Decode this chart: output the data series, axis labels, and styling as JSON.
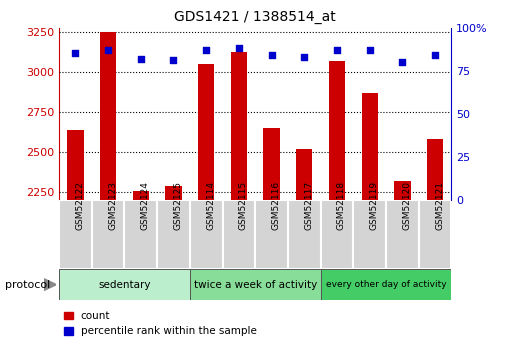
{
  "title": "GDS1421 / 1388514_at",
  "samples": [
    "GSM52122",
    "GSM52123",
    "GSM52124",
    "GSM52125",
    "GSM52114",
    "GSM52115",
    "GSM52116",
    "GSM52117",
    "GSM52118",
    "GSM52119",
    "GSM52120",
    "GSM52121"
  ],
  "counts": [
    2640,
    3250,
    2260,
    2290,
    3050,
    3130,
    2650,
    2520,
    3070,
    2870,
    2320,
    2580
  ],
  "percentile_ranks": [
    85,
    87,
    82,
    81,
    87,
    88,
    84,
    83,
    87,
    87,
    80,
    84
  ],
  "groups": [
    {
      "label": "sedentary",
      "start": 0,
      "end": 4,
      "color": "#bbeecc"
    },
    {
      "label": "twice a week of activity",
      "start": 4,
      "end": 8,
      "color": "#88dd99"
    },
    {
      "label": "every other day of activity",
      "start": 8,
      "end": 12,
      "color": "#44cc66"
    }
  ],
  "ylim_left": [
    2200,
    3280
  ],
  "ylim_right": [
    0,
    100
  ],
  "left_ticks": [
    2250,
    2500,
    2750,
    3000,
    3250
  ],
  "right_ticks": [
    0,
    25,
    50,
    75,
    100
  ],
  "bar_color": "#cc0000",
  "dot_color": "#0000cc",
  "bar_width": 0.5,
  "protocol_label": "protocol",
  "legend_items": [
    {
      "label": "count",
      "color": "#cc0000"
    },
    {
      "label": "percentile rank within the sample",
      "color": "#0000cc"
    }
  ]
}
